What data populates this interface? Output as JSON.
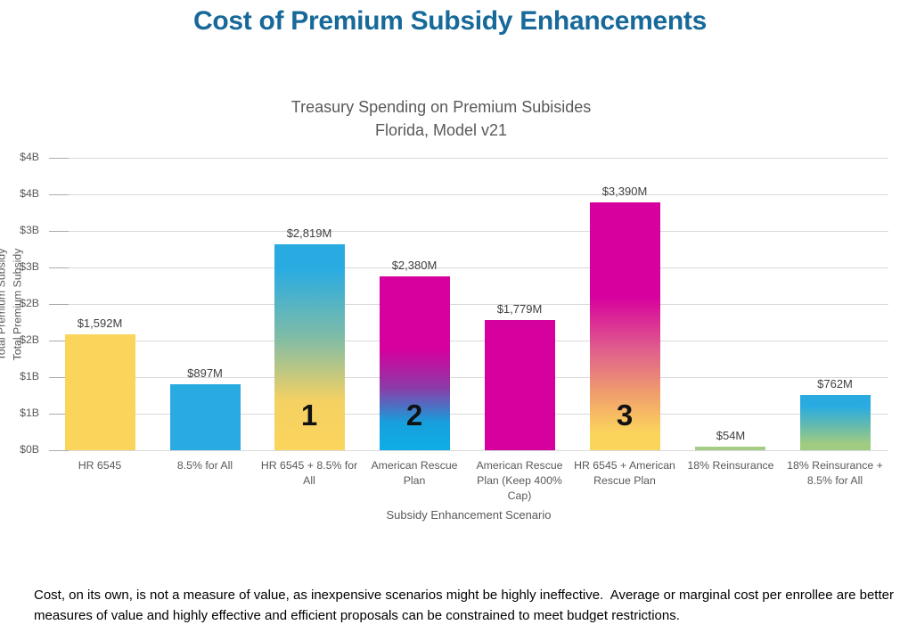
{
  "title": "Cost of Premium Subsidy Enhancements",
  "chart": {
    "subtitle_line1": "Treasury Spending on Premium Subisides",
    "subtitle_line2": "Florida, Model v21",
    "xlabel": "Subsidy Enhancement Scenario",
    "ylabel": "Total Premium Subsidy",
    "y_ticks": [
      "$4B",
      "$4B",
      "$3B",
      "$3B",
      "$2B",
      "$2B",
      "$1B",
      "$1B",
      "$0B"
    ],
    "bars": [
      {
        "label_display": "HR 6545",
        "value_m": 1592,
        "value_label": "$1,592M",
        "badge": "",
        "fill_css": "#FBD45C"
      },
      {
        "label_display": "8.5% for All",
        "value_m": 897,
        "value_label": "$897M",
        "badge": "",
        "fill_css": "#29ABE2"
      },
      {
        "label_display": "HR 6545 + 8.5% for\nAll",
        "value_m": 2819,
        "value_label": "$2,819M",
        "badge": "1",
        "fill_css": "linear-gradient(180deg,#29ABE2 0%,#29ABE2 12%,#7FBCA7 45%,#F4D162 76%,#FBD45C 100%)"
      },
      {
        "label_display": "American Rescue\nPlan",
        "value_m": 2380,
        "value_label": "$2,380M",
        "badge": "2",
        "fill_css": "linear-gradient(180deg,#D6009E 0%,#D6009E 42%,#8C3BA6 64%,#169FDC 84%,#0FAEE6 100%)"
      },
      {
        "label_display": "American Rescue\nPlan (Keep 400%\nCap)",
        "value_m": 1779,
        "value_label": "$1,779M",
        "badge": "",
        "fill_css": "#D6009E"
      },
      {
        "label_display": "HR 6545 + American\nRescue Plan",
        "value_m": 3390,
        "value_label": "$3,390M",
        "badge": "3",
        "fill_css": "linear-gradient(180deg,#D6009E 0%,#D6009E 38%,#E0618C 60%,#F1A16C 78%,#FBD45C 93%)"
      },
      {
        "label_display": "18% Reinsurance",
        "value_m": 54,
        "value_label": "$54M",
        "badge": "",
        "fill_css": "#A5CD86"
      },
      {
        "label_display": "18% Reinsurance +\n8.5% for All",
        "value_m": 762,
        "value_label": "$762M",
        "badge": "",
        "fill_css": "linear-gradient(180deg,#29ABE2 0%,#29ABE2 20%,#63BAAE 55%,#9FCC80 88%,#9FCC80 100%)"
      }
    ]
  },
  "chart_data": {
    "type": "bar",
    "title": "Treasury Spending on Premium Subisides",
    "subtitle": "Florida, Model v21",
    "xlabel": "Subsidy Enhancement Scenario",
    "ylabel": "Total Premium Subsidy",
    "categories": [
      "HR 6545",
      "8.5% for All",
      "HR 6545 + 8.5% for All",
      "American Rescue Plan",
      "American Rescue Plan (Keep 400% Cap)",
      "HR 6545 + American Rescue Plan",
      "18% Reinsurance",
      "18% Reinsurance + 8.5% for All"
    ],
    "values_millions": [
      1592,
      897,
      2819,
      2380,
      1779,
      3390,
      54,
      762
    ],
    "value_labels": [
      "$1,592M",
      "$897M",
      "$2,819M",
      "$2,380M",
      "$1,779M",
      "$3,390M",
      "$54M",
      "$762M"
    ],
    "bar_rank_annotations": [
      {
        "category_index": 2,
        "text": "1"
      },
      {
        "category_index": 3,
        "text": "2"
      },
      {
        "category_index": 5,
        "text": "3"
      }
    ],
    "ylim_billions": [
      0,
      4
    ],
    "gridline_step_billions": 0.5,
    "y_tick_labels_bottom_to_top": [
      "$0B",
      "$1B",
      "$1B",
      "$2B",
      "$2B",
      "$3B",
      "$3B",
      "$4B",
      "$4B"
    ],
    "grid": true,
    "legend": false,
    "colors": {
      "yellow": "#FBD45C",
      "cyan": "#29ABE2",
      "magenta": "#D6009E",
      "green": "#A5CD86",
      "title_accent": "#17699A",
      "axis_text": "#595959",
      "gridline": "#D9D9D9"
    }
  },
  "footnote": "Cost, on its own, is not a measure of value, as inexpensive scenarios might be highly ineffective.  Average or marginal cost per enrollee are better measures of value and highly effective and efficient proposals can be constrained to meet budget restrictions."
}
